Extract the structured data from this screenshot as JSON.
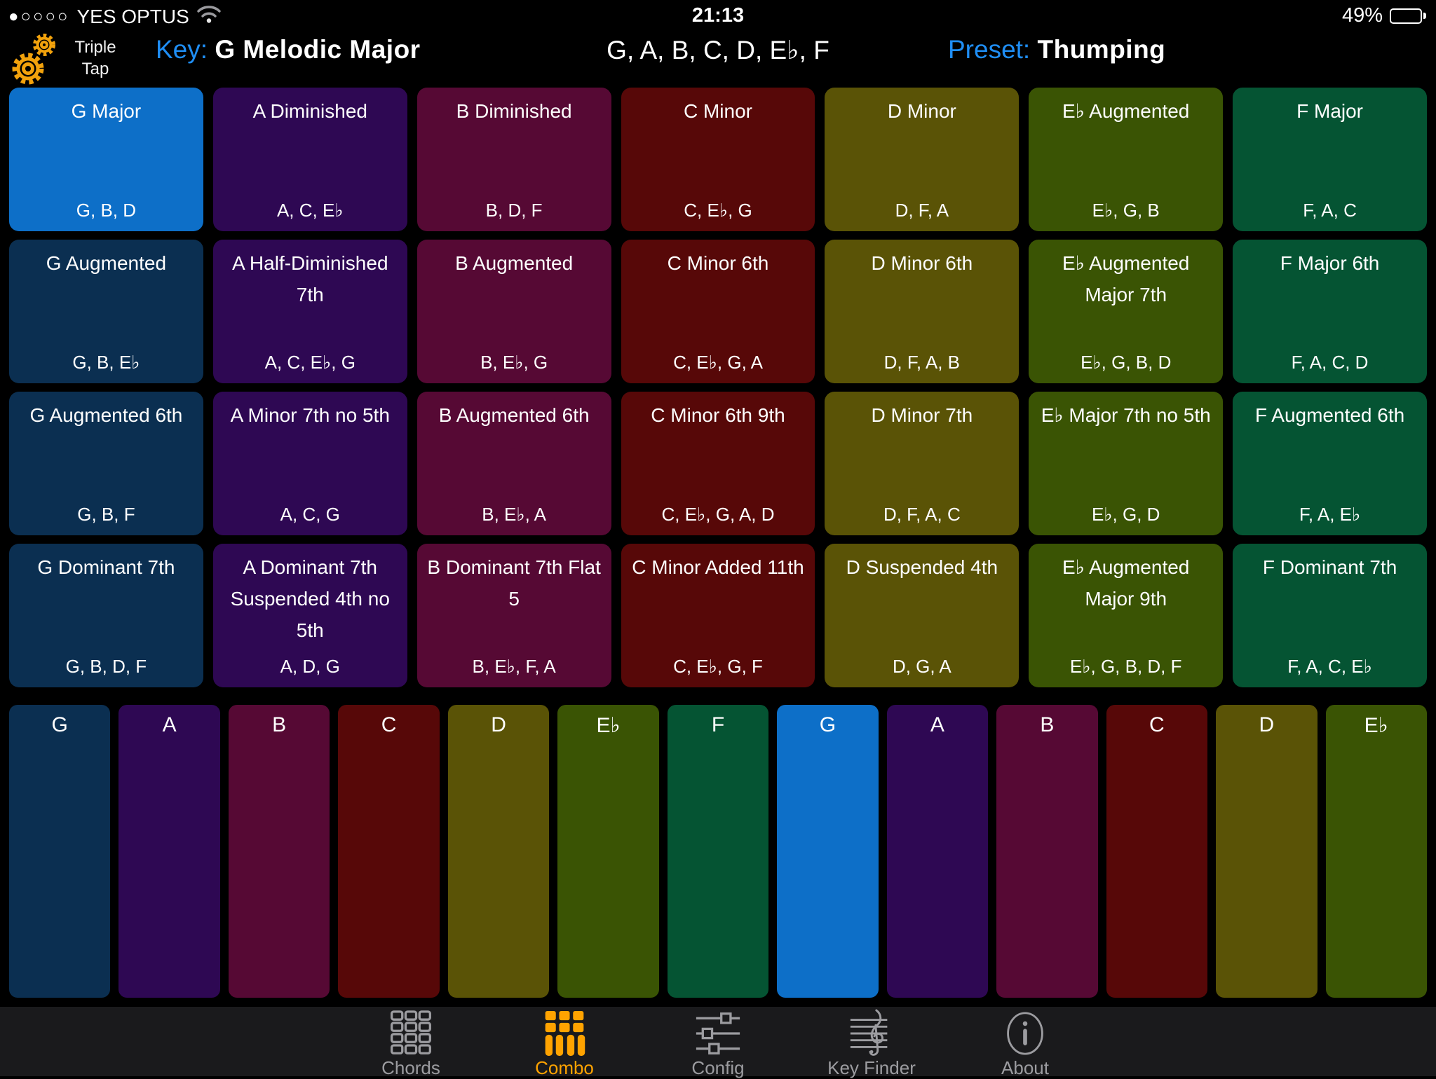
{
  "status_bar": {
    "signal_dots": "●○○○○",
    "carrier": "YES OPTUS",
    "time": "21:13",
    "battery_percent": "49%",
    "battery_level": 49,
    "wifi_icon": "wifi-icon",
    "battery_icon": "battery-icon"
  },
  "header": {
    "gear_icon": "gear-icon",
    "gear_label": "Triple Tap",
    "key_label": "Key:",
    "key_value": "G Melodic Major",
    "scale_notes": "G, A, B, C, D, E♭, F",
    "preset_label": "Preset:",
    "preset_value": "Thumping"
  },
  "colors": {
    "accent_blue": "#1f8ef5",
    "active_orange": "#ffa300",
    "highlight": "#0d6fc8",
    "tabbar_bg": "#1a1a1c",
    "columns": {
      "G": "#0b2f51",
      "A": "#2e0853",
      "B": "#560934",
      "C": "#570808",
      "D": "#5a5306",
      "Eb": "#3a5404",
      "F": "#055433"
    }
  },
  "chord_grid": {
    "rows": [
      [
        {
          "title": "G Major",
          "notes": "G, B, D",
          "col": "G",
          "highlight": true
        },
        {
          "title": "A Diminished",
          "notes": "A, C, E♭",
          "col": "A"
        },
        {
          "title": "B Diminished",
          "notes": "B, D, F",
          "col": "B"
        },
        {
          "title": "C Minor",
          "notes": "C, E♭, G",
          "col": "C"
        },
        {
          "title": "D Minor",
          "notes": "D, F, A",
          "col": "D"
        },
        {
          "title": "E♭ Augmented",
          "notes": "E♭, G, B",
          "col": "Eb"
        },
        {
          "title": "F Major",
          "notes": "F, A, C",
          "col": "F"
        }
      ],
      [
        {
          "title": "G Augmented",
          "notes": "G, B, E♭",
          "col": "G"
        },
        {
          "title": "A Half-Diminished 7th",
          "notes": "A, C, E♭, G",
          "col": "A"
        },
        {
          "title": "B Augmented",
          "notes": "B, E♭, G",
          "col": "B"
        },
        {
          "title": "C Minor 6th",
          "notes": "C, E♭, G, A",
          "col": "C"
        },
        {
          "title": "D Minor 6th",
          "notes": "D, F, A, B",
          "col": "D"
        },
        {
          "title": "E♭ Augmented Major 7th",
          "notes": "E♭, G, B, D",
          "col": "Eb"
        },
        {
          "title": "F Major 6th",
          "notes": "F, A, C, D",
          "col": "F"
        }
      ],
      [
        {
          "title": "G Augmented 6th",
          "notes": "G, B, F",
          "col": "G"
        },
        {
          "title": "A Minor 7th no 5th",
          "notes": "A, C, G",
          "col": "A"
        },
        {
          "title": "B Augmented 6th",
          "notes": "B, E♭, A",
          "col": "B"
        },
        {
          "title": "C Minor 6th 9th",
          "notes": "C, E♭, G, A, D",
          "col": "C"
        },
        {
          "title": "D Minor 7th",
          "notes": "D, F, A, C",
          "col": "D"
        },
        {
          "title": "E♭ Major 7th no 5th",
          "notes": "E♭, G, D",
          "col": "Eb"
        },
        {
          "title": "F Augmented 6th",
          "notes": "F, A, E♭",
          "col": "F"
        }
      ],
      [
        {
          "title": "G Dominant 7th",
          "notes": "G, B, D, F",
          "col": "G"
        },
        {
          "title": "A Dominant 7th Suspended 4th no 5th",
          "notes": "A, D, G",
          "col": "A"
        },
        {
          "title": "B Dominant 7th Flat 5",
          "notes": "B, E♭, F, A",
          "col": "B"
        },
        {
          "title": "C Minor Added 11th",
          "notes": "C, E♭, G, F",
          "col": "C"
        },
        {
          "title": "D Suspended 4th",
          "notes": "D, G, A",
          "col": "D"
        },
        {
          "title": "E♭ Augmented Major 9th",
          "notes": "E♭, G, B, D, F",
          "col": "Eb"
        },
        {
          "title": "F Dominant 7th",
          "notes": "F, A, C, E♭",
          "col": "F"
        }
      ]
    ]
  },
  "note_strip": [
    {
      "label": "G",
      "col": "G"
    },
    {
      "label": "A",
      "col": "A"
    },
    {
      "label": "B",
      "col": "B"
    },
    {
      "label": "C",
      "col": "C"
    },
    {
      "label": "D",
      "col": "D"
    },
    {
      "label": "E♭",
      "col": "Eb"
    },
    {
      "label": "F",
      "col": "F"
    },
    {
      "label": "G",
      "col": "G",
      "highlight": true
    },
    {
      "label": "A",
      "col": "A"
    },
    {
      "label": "B",
      "col": "B"
    },
    {
      "label": "C",
      "col": "C"
    },
    {
      "label": "D",
      "col": "D"
    },
    {
      "label": "E♭",
      "col": "Eb"
    }
  ],
  "tab_bar": {
    "items": [
      {
        "label": "Chords",
        "icon": "chords-icon",
        "active": false
      },
      {
        "label": "Combo",
        "icon": "combo-icon",
        "active": true
      },
      {
        "label": "Config",
        "icon": "config-icon",
        "active": false
      },
      {
        "label": "Key Finder",
        "icon": "keyfinder-icon",
        "active": false
      },
      {
        "label": "About",
        "icon": "about-icon",
        "active": false
      }
    ]
  }
}
